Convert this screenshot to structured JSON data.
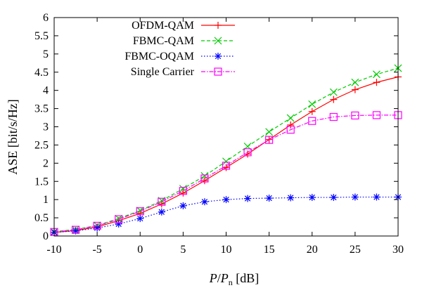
{
  "chart_data": {
    "type": "line",
    "xlabel": {
      "main": "P",
      "sep": "/",
      "denom": "P",
      "sub": "n",
      "unit": " [dB]"
    },
    "ylabel": "ASE [bit/s/Hz]",
    "xlim": [
      -10,
      30
    ],
    "ylim": [
      0,
      6
    ],
    "xticks": [
      -10,
      -5,
      0,
      5,
      10,
      15,
      20,
      25,
      30
    ],
    "yticks": [
      0,
      0.5,
      1,
      1.5,
      2,
      2.5,
      3,
      3.5,
      4,
      4.5,
      5,
      5.5,
      6
    ],
    "ytick_labels": [
      "0",
      "0.5",
      "1",
      "1.5",
      "2",
      "2.5",
      "3",
      "3.5",
      "4",
      "4.5",
      "5",
      "5.5",
      "6"
    ],
    "xtick_labels": [
      "-10",
      "-5",
      "0",
      "5",
      "10",
      "15",
      "20",
      "25",
      "30"
    ],
    "grid": false,
    "legend_position": "top-right",
    "x": [
      -10,
      -7.5,
      -5,
      -2.5,
      0,
      2.5,
      5,
      7.5,
      10,
      12.5,
      15,
      17.5,
      20,
      22.5,
      25,
      27.5,
      30
    ],
    "series": [
      {
        "name": "OFDM-QAM",
        "color": "#ff0000",
        "marker": "plus",
        "dash": "solid",
        "values": [
          0.1,
          0.15,
          0.25,
          0.42,
          0.62,
          0.88,
          1.18,
          1.52,
          1.88,
          2.25,
          2.65,
          3.05,
          3.42,
          3.75,
          4.02,
          4.22,
          4.37
        ]
      },
      {
        "name": "FBMC-QAM",
        "color": "#00cc00",
        "marker": "x",
        "dash": "dashed",
        "values": [
          0.12,
          0.18,
          0.29,
          0.48,
          0.7,
          0.97,
          1.3,
          1.65,
          2.05,
          2.46,
          2.86,
          3.24,
          3.62,
          3.95,
          4.22,
          4.44,
          4.61
        ]
      },
      {
        "name": "FBMC-OQAM",
        "color": "#0000ff",
        "marker": "star",
        "dash": "dotted",
        "values": [
          0.1,
          0.14,
          0.22,
          0.33,
          0.48,
          0.66,
          0.83,
          0.94,
          1.0,
          1.03,
          1.04,
          1.05,
          1.06,
          1.06,
          1.07,
          1.07,
          1.07
        ]
      },
      {
        "name": "Single Carrier",
        "color": "#ff00ff",
        "marker": "square",
        "dash": "dashdot",
        "values": [
          0.11,
          0.17,
          0.28,
          0.46,
          0.68,
          0.94,
          1.24,
          1.58,
          1.93,
          2.3,
          2.64,
          2.92,
          3.16,
          3.27,
          3.31,
          3.32,
          3.32
        ]
      }
    ]
  }
}
